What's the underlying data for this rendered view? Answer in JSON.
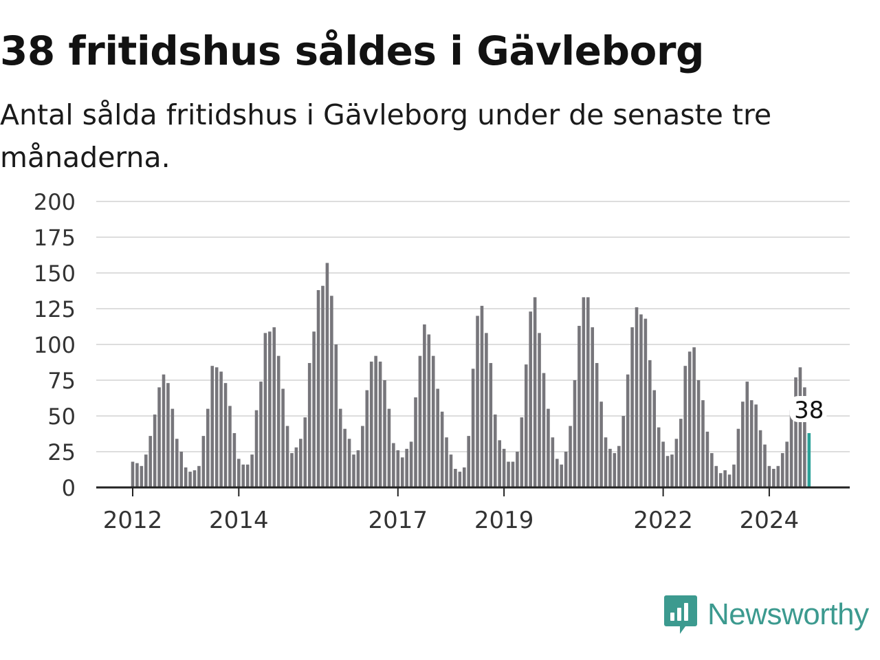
{
  "title": "38 fritidshus såldes i Gävleborg",
  "subtitle": "Antal sålda fritidshus i Gävleborg under de senaste tre månaderna.",
  "brand": {
    "name": "Newsworthy",
    "icon": "bar-chart-speech-icon",
    "color": "#3c9a8f"
  },
  "colors": {
    "bar": "#77767b",
    "highlight": "#2aa198",
    "grid": "#dddddd",
    "axis": "#222222"
  },
  "chart_data": {
    "type": "bar",
    "title": "38 fritidshus såldes i Gävleborg",
    "subtitle": "Antal sålda fritidshus i Gävleborg under de senaste tre månaderna.",
    "xlabel": "",
    "ylabel": "",
    "ylim": [
      0,
      200
    ],
    "yticks": [
      0,
      25,
      50,
      75,
      100,
      125,
      150,
      175,
      200
    ],
    "xticks": [
      "2012",
      "2014",
      "2017",
      "2019",
      "2022",
      "2024"
    ],
    "grid": true,
    "start": "2012-01",
    "frequency": "monthly",
    "highlight_last": true,
    "last_value_label": "38",
    "values": [
      18,
      17,
      15,
      23,
      36,
      51,
      70,
      79,
      73,
      55,
      34,
      25,
      14,
      11,
      12,
      15,
      36,
      55,
      85,
      84,
      81,
      73,
      57,
      38,
      20,
      16,
      16,
      23,
      54,
      74,
      108,
      109,
      112,
      92,
      69,
      43,
      24,
      28,
      34,
      49,
      87,
      109,
      138,
      141,
      157,
      134,
      100,
      55,
      41,
      34,
      23,
      26,
      43,
      68,
      88,
      92,
      88,
      75,
      55,
      31,
      26,
      21,
      27,
      32,
      63,
      92,
      114,
      107,
      92,
      69,
      53,
      35,
      23,
      13,
      11,
      14,
      36,
      83,
      120,
      127,
      108,
      87,
      51,
      33,
      27,
      18,
      18,
      25,
      49,
      86,
      123,
      133,
      108,
      80,
      55,
      35,
      20,
      16,
      25,
      43,
      75,
      113,
      133,
      133,
      112,
      87,
      60,
      35,
      27,
      24,
      29,
      50,
      79,
      112,
      126,
      121,
      118,
      89,
      68,
      42,
      32,
      22,
      23,
      34,
      48,
      85,
      95,
      98,
      75,
      61,
      39,
      24,
      15,
      10,
      12,
      9,
      16,
      41,
      60,
      74,
      61,
      58,
      40,
      30,
      15,
      13,
      15,
      24,
      32,
      54,
      77,
      84,
      70,
      38
    ]
  }
}
